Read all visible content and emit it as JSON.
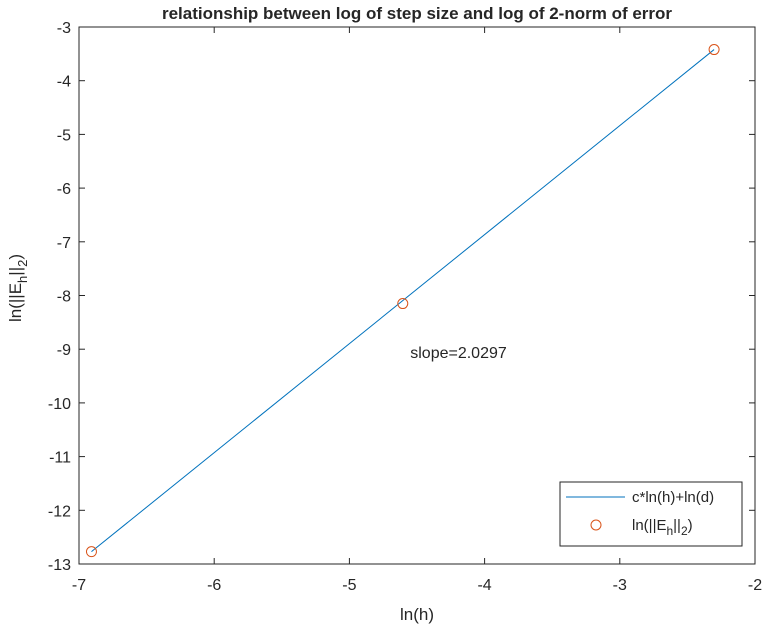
{
  "chart_data": {
    "type": "line",
    "title": "relationship between log of step size and log of 2-norm of error",
    "xlabel": "ln(h)",
    "ylabel": {
      "main": "ln(||E",
      "sub1": "h",
      "mid": "||",
      "sub2": "2",
      "end": ")"
    },
    "xlim": [
      -7,
      -2
    ],
    "ylim": [
      -13,
      -3
    ],
    "xticks": [
      -7,
      -6,
      -5,
      -4,
      -3,
      -2
    ],
    "yticks": [
      -13,
      -12,
      -11,
      -10,
      -9,
      -8,
      -7,
      -6,
      -5,
      -4,
      -3
    ],
    "grid": false,
    "annotation": {
      "text": "slope=2.0297",
      "x": -4.55,
      "y": -9.05
    },
    "series": [
      {
        "name": "c*ln(h)+ln(d)",
        "kind": "line",
        "color": "#0072BD",
        "x": [
          -6.9078,
          -2.3026
        ],
        "y": [
          -12.77,
          -3.42
        ]
      },
      {
        "name": "ln(||E_h||_2)",
        "legend": {
          "main": "ln(||E",
          "sub1": "h",
          "mid": "||",
          "sub2": "2",
          "end": ")"
        },
        "kind": "scatter",
        "marker": "circle-open",
        "color": "#D95319",
        "x": [
          -6.9078,
          -4.6052,
          -2.3026
        ],
        "y": [
          -12.77,
          -8.15,
          -3.42
        ]
      }
    ],
    "legend_position": "bottom-right"
  }
}
